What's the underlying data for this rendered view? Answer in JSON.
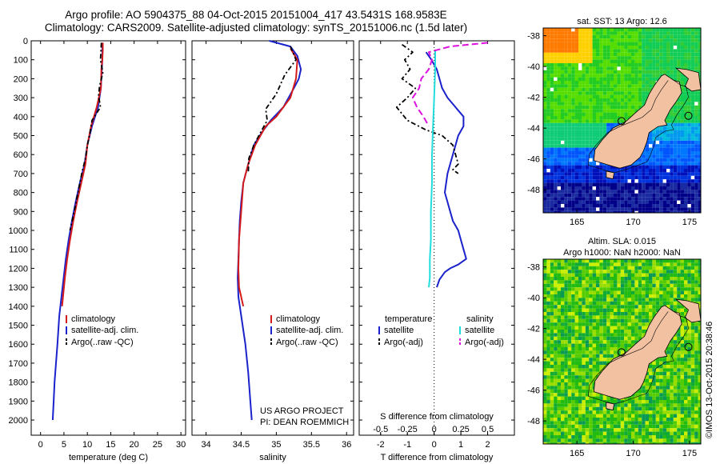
{
  "header": {
    "title_line1": "Argo profile: AO 5904375_88 04-Oct-2015 20151004_417 43.5431S 168.9583E",
    "title_line2": "Climatology: CARS2009. Satellite-adjusted climatology: synTS_20151006.nc (1.5d later)"
  },
  "colors": {
    "climatology": "#d41a1a",
    "satellite": "#1a22cc",
    "argo": "#000000",
    "satellite_salinity": "#22dddd",
    "argo_salinity_adj": "#dd11dd",
    "land": "#f2c1a2"
  },
  "chart_data": [
    {
      "name": "temperature",
      "type": "line",
      "xlabel": "temperature (deg C)",
      "ylabel": "",
      "xlim": [
        -2,
        31
      ],
      "ylim": [
        2080,
        0
      ],
      "xticks": [
        0,
        5,
        10,
        15,
        20,
        25,
        30
      ],
      "yticks": [
        0,
        100,
        200,
        300,
        400,
        500,
        600,
        700,
        800,
        900,
        1000,
        1100,
        1200,
        1300,
        1400,
        1500,
        1600,
        1700,
        1800,
        1900,
        2000
      ],
      "legend": [
        "climatology",
        "satellite-adj. clim.",
        "Argo(..raw -QC)"
      ],
      "legend_position": "lower-left",
      "series": [
        {
          "name": "climatology",
          "x": [
            13.3,
            13.3,
            13.2,
            13.0,
            12.9,
            12.0,
            10.8,
            10.0,
            9.6,
            8.7,
            7.8,
            7.0,
            6.3,
            5.7,
            5.2,
            4.6
          ],
          "y": [
            10,
            50,
            100,
            150,
            250,
            350,
            450,
            550,
            650,
            750,
            850,
            950,
            1050,
            1150,
            1250,
            1400
          ]
        },
        {
          "name": "satellite-adj. clim.",
          "x": [
            13.2,
            13.2,
            13.2,
            13.1,
            12.9,
            12.3,
            11.0,
            10.0,
            9.4,
            8.4,
            7.5,
            6.7,
            6.0,
            5.4,
            4.7,
            4.0,
            3.6,
            3.3,
            3.0,
            2.8,
            2.6
          ],
          "y": [
            10,
            50,
            100,
            150,
            250,
            350,
            450,
            550,
            650,
            750,
            850,
            950,
            1050,
            1150,
            1300,
            1450,
            1600,
            1700,
            1800,
            1900,
            2000
          ]
        },
        {
          "name": "Argo(..raw -QC)",
          "x": [
            13.0,
            12.8,
            13.3,
            12.6,
            12.4,
            12.8,
            11.0,
            10.6,
            10.0,
            9.6,
            8.8,
            8.0,
            7.2,
            6.3
          ],
          "y": [
            10,
            100,
            170,
            240,
            290,
            350,
            420,
            480,
            550,
            620,
            700,
            800,
            900,
            1000
          ]
        }
      ]
    },
    {
      "name": "salinity",
      "type": "line",
      "xlabel": "salinity",
      "ylabel": "",
      "xlim": [
        33.8,
        36.1
      ],
      "ylim": [
        2080,
        0
      ],
      "xticks": [
        34,
        34.5,
        35,
        35.5,
        36
      ],
      "legend": [
        "climatology",
        "satellite-adj. clim.",
        "Argo(..raw -QC)"
      ],
      "legend_position": "lower-right",
      "annotation_line1": "US ARGO PROJECT",
      "annotation_line2": "PI: DEAN ROEMMICH",
      "series": [
        {
          "name": "climatology",
          "x": [
            35.2,
            35.3,
            35.28,
            35.2,
            35.0,
            34.85,
            34.7,
            34.6,
            34.53,
            34.5,
            34.47,
            34.46,
            34.47,
            34.53
          ],
          "y": [
            40,
            100,
            200,
            300,
            400,
            450,
            550,
            650,
            750,
            900,
            1050,
            1200,
            1300,
            1400
          ]
        },
        {
          "name": "satellite-adj. clim.",
          "x": [
            34.9,
            35.2,
            35.3,
            35.35,
            35.32,
            35.25,
            35.1,
            34.92,
            34.8,
            34.68,
            34.6,
            34.53,
            34.5,
            34.48,
            34.47,
            34.46,
            34.45,
            34.46,
            34.5,
            34.56,
            34.6,
            34.63,
            34.65
          ],
          "y": [
            0,
            30,
            80,
            150,
            200,
            250,
            350,
            420,
            480,
            550,
            650,
            750,
            850,
            950,
            1050,
            1150,
            1250,
            1350,
            1450,
            1600,
            1750,
            1900,
            2000
          ]
        },
        {
          "name": "Argo(..raw -QC)",
          "x": [
            35.2,
            35.28,
            35.12,
            35.0,
            34.85,
            34.87,
            34.78,
            34.68,
            34.61,
            34.6
          ],
          "y": [
            30,
            100,
            180,
            280,
            360,
            420,
            480,
            550,
            620,
            700
          ]
        }
      ]
    },
    {
      "name": "difference",
      "type": "line",
      "xlabel": "T difference from climatology",
      "xlabel2": "S difference from climatology",
      "ylabel": "",
      "xlim": [
        -2.8,
        3
      ],
      "ylim": [
        2080,
        0
      ],
      "xticks": [
        -2,
        -1,
        0,
        1,
        2
      ],
      "xticks_s_values": [
        -0.5,
        -0.25,
        0,
        0.25,
        0.5
      ],
      "xticks_s_labels": [
        "-0.5",
        "-0.25",
        "0",
        "0.25",
        "0.5"
      ],
      "legend_temperature_heading": "temperature",
      "legend_salinity_heading": "salinity",
      "legend": [
        "satellite",
        "Argo(-adj)",
        "satellite",
        "Argo(-adj)"
      ],
      "legend_position": "upper-right",
      "series": [
        {
          "name": "temperature satellite",
          "x": [
            -0.3,
            -0.1,
            0.1,
            0.2,
            0.3,
            0.5,
            0.8,
            1.1,
            1.1,
            0.9,
            0.7,
            0.5,
            0.4,
            0.5,
            0.6,
            0.7,
            0.9,
            1.0,
            1.1,
            1.2,
            0.9,
            0.6,
            0.4,
            0.2,
            0.1
          ],
          "y": [
            60,
            100,
            150,
            200,
            250,
            300,
            350,
            400,
            450,
            500,
            600,
            700,
            800,
            850,
            900,
            950,
            1000,
            1050,
            1100,
            1150,
            1180,
            1200,
            1220,
            1260,
            1300
          ]
        },
        {
          "name": "temperature Argo(-adj)",
          "x": [
            -1.2,
            -0.8,
            -1.1,
            -0.9,
            -1.2,
            -0.7,
            -1.0,
            -1.4,
            -1.0,
            -0.3,
            0.3,
            0.7,
            0.8,
            0.9,
            0.7,
            0.9
          ],
          "y": [
            20,
            60,
            100,
            150,
            200,
            250,
            300,
            350,
            420,
            470,
            500,
            550,
            600,
            650,
            680,
            700
          ]
        },
        {
          "name": "salinity satellite",
          "x": [
            0.01,
            0.01,
            0.0,
            -0.01,
            -0.02,
            -0.02,
            -0.03,
            -0.03,
            -0.04,
            -0.04,
            -0.05
          ],
          "y": [
            50,
            150,
            300,
            450,
            600,
            750,
            900,
            1050,
            1150,
            1250,
            1300
          ]
        },
        {
          "name": "salinity Argo(-adj)",
          "x": [
            0.5,
            0.15,
            -0.05,
            -0.02,
            -0.05,
            -0.12,
            -0.14,
            -0.2,
            -0.16,
            -0.1,
            -0.05
          ],
          "y": [
            10,
            30,
            60,
            100,
            150,
            200,
            250,
            300,
            350,
            400,
            450
          ]
        }
      ]
    },
    {
      "name": "sst-map",
      "type": "heatmap",
      "title": "sat. SST: 13 Argo: 12.6",
      "xlim": [
        162,
        176
      ],
      "ylim": [
        -49.5,
        -37.5
      ],
      "xticks": [
        165,
        170,
        175
      ],
      "yticks": [
        -38,
        -40,
        -42,
        -44,
        -46,
        -48
      ],
      "argo_lon": 168.9583,
      "argo_lat": -43.5431
    },
    {
      "name": "sla-map",
      "type": "heatmap",
      "title_line1": "Altim. SLA: 0.015",
      "title_line2": "Argo h1000: NaN h2000: NaN",
      "xlim": [
        162,
        176
      ],
      "ylim": [
        -49.5,
        -37.5
      ],
      "xticks": [
        165,
        170,
        175
      ],
      "yticks": [
        -38,
        -40,
        -42,
        -44,
        -46,
        -48
      ],
      "argo_lon": 168.9583,
      "argo_lat": -43.5431
    }
  ],
  "watermark": "©IMOS 13-Oct-2015 20:38:46"
}
